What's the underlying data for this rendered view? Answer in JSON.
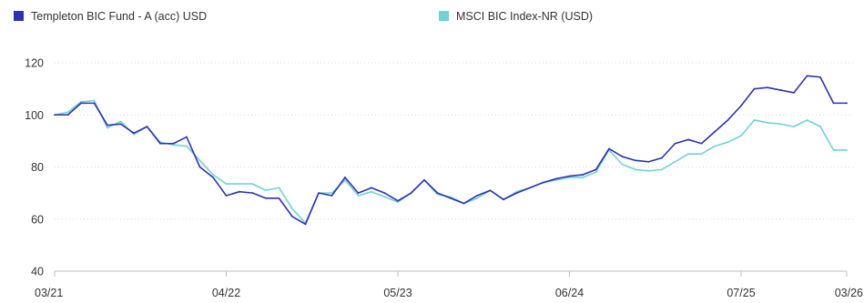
{
  "chart_data": {
    "type": "line",
    "title": "",
    "xlabel": "",
    "ylabel": "",
    "ylim": [
      40,
      120
    ],
    "yticks": [
      40,
      60,
      80,
      100,
      120
    ],
    "grid": true,
    "legend_position": "top",
    "x_tick_labels": [
      "03/21",
      "04/22",
      "05/23",
      "06/24",
      "07/25",
      "03/26"
    ],
    "x": [
      "03/21",
      "04/21",
      "05/21",
      "06/21",
      "07/21",
      "08/21",
      "09/21",
      "10/21",
      "11/21",
      "12/21",
      "01/22",
      "02/22",
      "03/22",
      "04/22",
      "05/22",
      "06/22",
      "07/22",
      "08/22",
      "09/22",
      "10/22",
      "11/22",
      "12/22",
      "01/23",
      "02/23",
      "03/23",
      "04/23",
      "05/23",
      "06/23",
      "07/23",
      "08/23",
      "09/23",
      "10/23",
      "11/23",
      "12/23",
      "01/24",
      "02/24",
      "03/24",
      "04/24",
      "05/24",
      "06/24",
      "07/24",
      "08/24",
      "09/24",
      "10/24",
      "11/24",
      "12/24",
      "01/25",
      "02/25",
      "03/25",
      "04/25",
      "05/25",
      "06/25",
      "07/25",
      "08/25",
      "09/25",
      "10/25",
      "11/25",
      "12/25",
      "01/26",
      "02/26",
      "03/26"
    ],
    "series": [
      {
        "name": "Templeton BIC Fund - A (acc) USD",
        "color": "#2a32b8",
        "values": [
          100,
          100,
          104.5,
          104.5,
          96,
          96.5,
          93,
          95.5,
          89,
          89,
          91.5,
          80,
          76,
          69,
          70.5,
          70,
          68,
          68,
          61,
          58,
          70,
          69,
          76,
          70,
          72,
          70,
          67,
          70,
          75,
          70,
          68,
          66,
          69,
          71,
          67.5,
          70,
          72,
          74,
          75.5,
          76.5,
          77,
          79,
          87,
          84,
          82.5,
          82,
          83.5,
          89,
          90.5,
          89,
          93.5,
          98,
          103.5,
          110,
          110.5,
          109.5,
          108.5,
          115,
          114.5,
          104.5,
          104.5
        ]
      },
      {
        "name": "MSCI BIC Index-NR (USD)",
        "color": "#6fd3d3",
        "values": [
          100,
          101,
          105,
          105.5,
          95,
          97.5,
          92.5,
          95.5,
          89.5,
          88.5,
          88,
          82.5,
          77,
          73.5,
          73.5,
          73.5,
          71,
          72,
          64,
          58.5,
          70,
          70,
          75,
          69,
          70.5,
          68.5,
          66.5,
          70,
          75,
          69.5,
          68.5,
          66,
          68,
          71,
          67.5,
          70.5,
          72,
          74,
          75,
          76,
          76,
          78,
          86.5,
          81,
          79,
          78.5,
          79,
          82,
          85,
          85,
          88,
          89.5,
          92,
          98,
          97,
          96.5,
          95.5,
          98,
          95.5,
          86.5,
          86.5
        ]
      }
    ]
  }
}
